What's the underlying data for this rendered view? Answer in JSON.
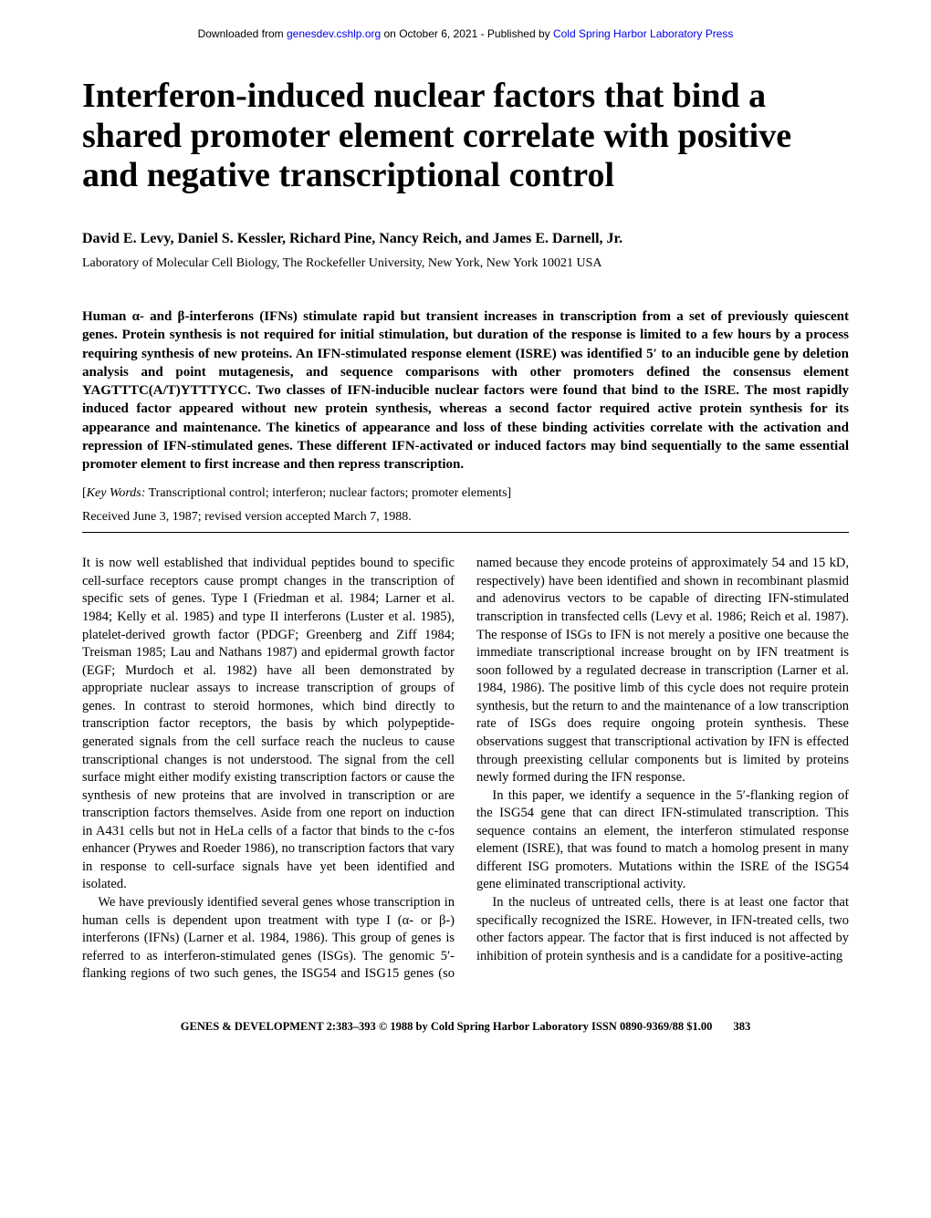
{
  "header": {
    "prefix": "Downloaded from ",
    "link1_text": "genesdev.cshlp.org",
    "mid": " on October 6, 2021 - Published by ",
    "link2_text": "Cold Spring Harbor Laboratory Press"
  },
  "title": "Interferon-induced nuclear factors that bind a shared promoter element correlate with positive and negative transcriptional control",
  "authors": "David E. Levy, Daniel S. Kessler, Richard Pine, Nancy Reich, and James E. Darnell, Jr.",
  "affiliation": "Laboratory of Molecular Cell Biology, The Rockefeller University, New York, New York 10021 USA",
  "abstract": "Human α- and β-interferons (IFNs) stimulate rapid but transient increases in transcription from a set of previously quiescent genes. Protein synthesis is not required for initial stimulation, but duration of the response is limited to a few hours by a process requiring synthesis of new proteins. An IFN-stimulated response element (ISRE) was identified 5′ to an inducible gene by deletion analysis and point mutagenesis, and sequence comparisons with other promoters defined the consensus element YAGTTTC(A/T)YTTTYCC. Two classes of IFN-inducible nuclear factors were found that bind to the ISRE. The most rapidly induced factor appeared without new protein synthesis, whereas a second factor required active protein synthesis for its appearance and maintenance. The kinetics of appearance and loss of these binding activities correlate with the activation and repression of IFN-stimulated genes. These different IFN-activated or induced factors may bind sequentially to the same essential promoter element to first increase and then repress transcription.",
  "keywords_label": "Key Words:",
  "keywords": " Transcriptional control; interferon; nuclear factors; promoter elements]",
  "received": "Received June 3, 1987; revised version accepted March 7, 1988.",
  "body": {
    "p1": "It is now well established that individual peptides bound to specific cell-surface receptors cause prompt changes in the transcription of specific sets of genes. Type I (Friedman et al. 1984; Larner et al. 1984; Kelly et al. 1985) and type II interferons (Luster et al. 1985), platelet-derived growth factor (PDGF; Greenberg and Ziff 1984; Treisman 1985; Lau and Nathans 1987) and epidermal growth factor (EGF; Murdoch et al. 1982) have all been demonstrated by appropriate nuclear assays to increase transcription of groups of genes. In contrast to steroid hormones, which bind directly to transcription factor receptors, the basis by which polypeptide-generated signals from the cell surface reach the nucleus to cause transcriptional changes is not understood. The signal from the cell surface might either modify existing transcription factors or cause the synthesis of new proteins that are involved in transcription or are transcription factors themselves. Aside from one report on induction in A431 cells but not in HeLa cells of a factor that binds to the c-fos enhancer (Prywes and Roeder 1986), no transcription factors that vary in response to cell-surface signals have yet been identified and isolated.",
    "p2": "We have previously identified several genes whose transcription in human cells is dependent upon treatment with type I (α- or β-) interferons (IFNs) (Larner et al. 1984, 1986). This group of genes is referred to as interferon-stimulated genes (ISGs). The genomic 5′-flanking regions of two such genes, the ISG54 and ISG15 genes (so named because they encode proteins of approximately 54 and 15 kD, respectively) have been identified and shown in recombinant plasmid and adenovirus vectors to be capable of directing IFN-stimulated transcription in transfected cells (Levy et al. 1986; Reich et al. 1987). The response of ISGs to IFN is not merely a positive one because the immediate transcriptional increase brought on by IFN treatment is soon followed by a regulated decrease in transcription (Larner et al. 1984, 1986). The positive limb of this cycle does not require protein synthesis, but the return to and the maintenance of a low transcription rate of ISGs does require ongoing protein synthesis. These observations suggest that transcriptional activation by IFN is effected through preexisting cellular components but is limited by proteins newly formed during the IFN response.",
    "p3": "In this paper, we identify a sequence in the 5′-flanking region of the ISG54 gene that can direct IFN-stimulated transcription. This sequence contains an element, the interferon stimulated response element (ISRE), that was found to match a homolog present in many different ISG promoters. Mutations within the ISRE of the ISG54 gene eliminated transcriptional activity.",
    "p4": "In the nucleus of untreated cells, there is at least one factor that specifically recognized the ISRE. However, in IFN-treated cells, two other factors appear. The factor that is first induced is not affected by inhibition of protein synthesis and is a candidate for a positive-acting"
  },
  "footer": {
    "citation": "GENES & DEVELOPMENT 2:383–393 © 1988 by Cold Spring Harbor Laboratory ISSN 0890-9369/88 $1.00",
    "page": "383"
  }
}
